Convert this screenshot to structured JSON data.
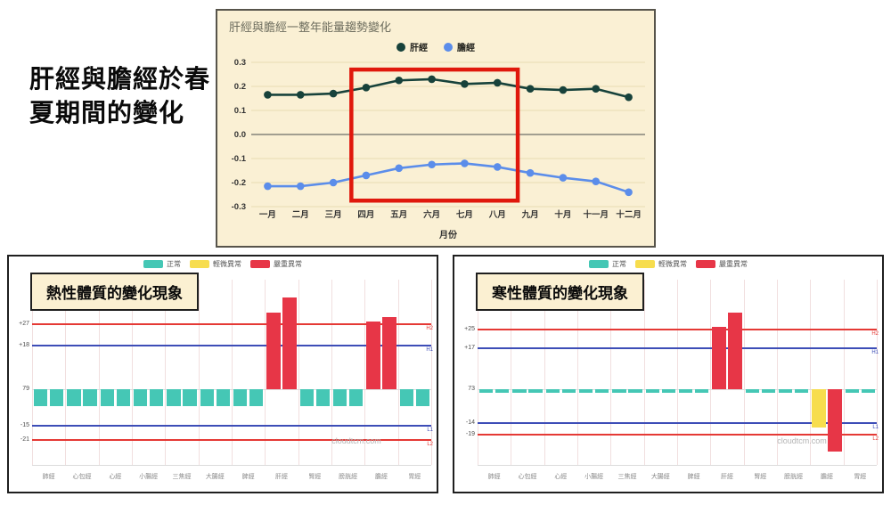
{
  "headline": {
    "line1": "肝經與膽經於春",
    "line2": "夏期間的變化"
  },
  "status_colors": {
    "normal": "#45C7B5",
    "mild": "#F7DD4E",
    "severe": "#E73647"
  },
  "chart_data": [
    {
      "id": "yearly-trend",
      "type": "line",
      "title": "肝經與膽經一整年能量趨勢變化",
      "xlabel": "月份",
      "background": "#FAF0D4",
      "grid": true,
      "legend_position": "top",
      "categories": [
        "一月",
        "二月",
        "三月",
        "四月",
        "五月",
        "六月",
        "七月",
        "八月",
        "九月",
        "十月",
        "十一月",
        "十二月"
      ],
      "yticks": [
        "0.3",
        "0.2",
        "0.1",
        "0.0",
        "-0.1",
        "-0.2",
        "-0.3"
      ],
      "ylim": [
        -0.3,
        0.3
      ],
      "series": [
        {
          "name": "肝經",
          "color": "#17423B",
          "values": [
            0.165,
            0.165,
            0.17,
            0.195,
            0.225,
            0.23,
            0.21,
            0.215,
            0.19,
            0.185,
            0.19,
            0.155
          ]
        },
        {
          "name": "膽經",
          "color": "#5B8DEA",
          "values": [
            -0.215,
            -0.215,
            -0.2,
            -0.17,
            -0.14,
            -0.125,
            -0.12,
            -0.135,
            -0.16,
            -0.18,
            -0.195,
            -0.24
          ]
        }
      ],
      "highlight_box": {
        "color": "#E0180C",
        "covers": "四月～八月",
        "from_month_index": 3,
        "to_month_index": 7,
        "pad_left_slots": 0.45,
        "pad_right_slots": 0.62,
        "y_top": 0.27,
        "y_bottom": -0.275
      }
    },
    {
      "id": "hot-constitution",
      "type": "bar",
      "title": "熱性體質的變化現象",
      "watermark": "cloudtcm.com",
      "ylim": [
        -33,
        50
      ],
      "legend": [
        {
          "label": "正常",
          "status": "normal"
        },
        {
          "label": "輕微異常",
          "status": "mild"
        },
        {
          "label": "嚴重異常",
          "status": "severe"
        }
      ],
      "thresholds": [
        {
          "label": "H2",
          "tick": "+27",
          "value": 27,
          "color": "#E53935"
        },
        {
          "label": "H1",
          "tick": "+18",
          "value": 18,
          "color": "#3D4DB7"
        },
        {
          "label": "",
          "tick": "79",
          "value": 0,
          "color": "#DDDDDD"
        },
        {
          "label": "L1",
          "tick": "-15",
          "value": -15,
          "color": "#3D4DB7"
        },
        {
          "label": "L2",
          "tick": "-21",
          "value": -21,
          "color": "#E53935"
        }
      ],
      "categories": [
        "肺經",
        "心包經",
        "心經",
        "小腸經",
        "三焦經",
        "大腸經",
        "脾經",
        "肝經",
        "腎經",
        "膀胱經",
        "膽經",
        "胃經"
      ],
      "bars": [
        {
          "meridian": "肺經",
          "values": [
            -7,
            -7
          ],
          "statuses": [
            "normal",
            "normal"
          ]
        },
        {
          "meridian": "心包經",
          "values": [
            -7,
            -7
          ],
          "statuses": [
            "normal",
            "normal"
          ]
        },
        {
          "meridian": "心經",
          "values": [
            -7,
            -7
          ],
          "statuses": [
            "normal",
            "normal"
          ]
        },
        {
          "meridian": "小腸經",
          "values": [
            -7,
            -7
          ],
          "statuses": [
            "normal",
            "normal"
          ]
        },
        {
          "meridian": "三焦經",
          "values": [
            -7,
            -7
          ],
          "statuses": [
            "normal",
            "normal"
          ]
        },
        {
          "meridian": "大腸經",
          "values": [
            -7,
            -7
          ],
          "statuses": [
            "normal",
            "normal"
          ]
        },
        {
          "meridian": "脾經",
          "values": [
            -7,
            -7
          ],
          "statuses": [
            "normal",
            "normal"
          ]
        },
        {
          "meridian": "肝經",
          "values": [
            32,
            38
          ],
          "statuses": [
            "severe",
            "severe"
          ]
        },
        {
          "meridian": "腎經",
          "values": [
            -7,
            -7
          ],
          "statuses": [
            "normal",
            "normal"
          ]
        },
        {
          "meridian": "膀胱經",
          "values": [
            -7,
            -7
          ],
          "statuses": [
            "normal",
            "normal"
          ]
        },
        {
          "meridian": "膽經",
          "values": [
            28,
            30
          ],
          "statuses": [
            "severe",
            "severe"
          ]
        },
        {
          "meridian": "胃經",
          "values": [
            -7,
            -7
          ],
          "statuses": [
            "normal",
            "normal"
          ]
        }
      ]
    },
    {
      "id": "cold-constitution",
      "type": "bar",
      "title": "寒性體質的變化現象",
      "watermark": "cloudtcm.com",
      "ylim": [
        -33,
        50
      ],
      "legend": [
        {
          "label": "正常",
          "status": "normal"
        },
        {
          "label": "輕微異常",
          "status": "mild"
        },
        {
          "label": "嚴重異常",
          "status": "severe"
        }
      ],
      "thresholds": [
        {
          "label": "H2",
          "tick": "+25",
          "value": 25,
          "color": "#E53935"
        },
        {
          "label": "H1",
          "tick": "+17",
          "value": 17,
          "color": "#3D4DB7"
        },
        {
          "label": "",
          "tick": "73",
          "value": 0,
          "color": "#DDDDDD"
        },
        {
          "label": "L1",
          "tick": "-14",
          "value": -14,
          "color": "#3D4DB7"
        },
        {
          "label": "L2",
          "tick": "-19",
          "value": -19,
          "color": "#E53935"
        }
      ],
      "categories": [
        "肺經",
        "心包經",
        "心經",
        "小腸經",
        "三焦經",
        "大腸經",
        "脾經",
        "肝經",
        "腎經",
        "膀胱經",
        "膽經",
        "胃經"
      ],
      "bars": [
        {
          "meridian": "肺經",
          "values": [
            -1.5,
            -1.5
          ],
          "statuses": [
            "normal",
            "normal"
          ]
        },
        {
          "meridian": "心包經",
          "values": [
            -1.5,
            -1.5
          ],
          "statuses": [
            "normal",
            "normal"
          ]
        },
        {
          "meridian": "心經",
          "values": [
            -1.5,
            -1.5
          ],
          "statuses": [
            "normal",
            "normal"
          ]
        },
        {
          "meridian": "小腸經",
          "values": [
            -1.5,
            -1.5
          ],
          "statuses": [
            "normal",
            "normal"
          ]
        },
        {
          "meridian": "三焦經",
          "values": [
            -1.5,
            -1.5
          ],
          "statuses": [
            "normal",
            "normal"
          ]
        },
        {
          "meridian": "大腸經",
          "values": [
            -1.5,
            -1.5
          ],
          "statuses": [
            "normal",
            "normal"
          ]
        },
        {
          "meridian": "脾經",
          "values": [
            -1.5,
            -1.5
          ],
          "statuses": [
            "normal",
            "normal"
          ]
        },
        {
          "meridian": "肝經",
          "values": [
            26,
            32
          ],
          "statuses": [
            "severe",
            "severe"
          ]
        },
        {
          "meridian": "腎經",
          "values": [
            -1.5,
            -1.5
          ],
          "statuses": [
            "normal",
            "normal"
          ]
        },
        {
          "meridian": "膀胱經",
          "values": [
            -1.5,
            -1.5
          ],
          "statuses": [
            "normal",
            "normal"
          ]
        },
        {
          "meridian": "膽經",
          "values": [
            -16,
            -26
          ],
          "statuses": [
            "mild",
            "severe"
          ]
        },
        {
          "meridian": "胃經",
          "values": [
            -1.5,
            -1.5
          ],
          "statuses": [
            "normal",
            "normal"
          ]
        }
      ]
    }
  ]
}
